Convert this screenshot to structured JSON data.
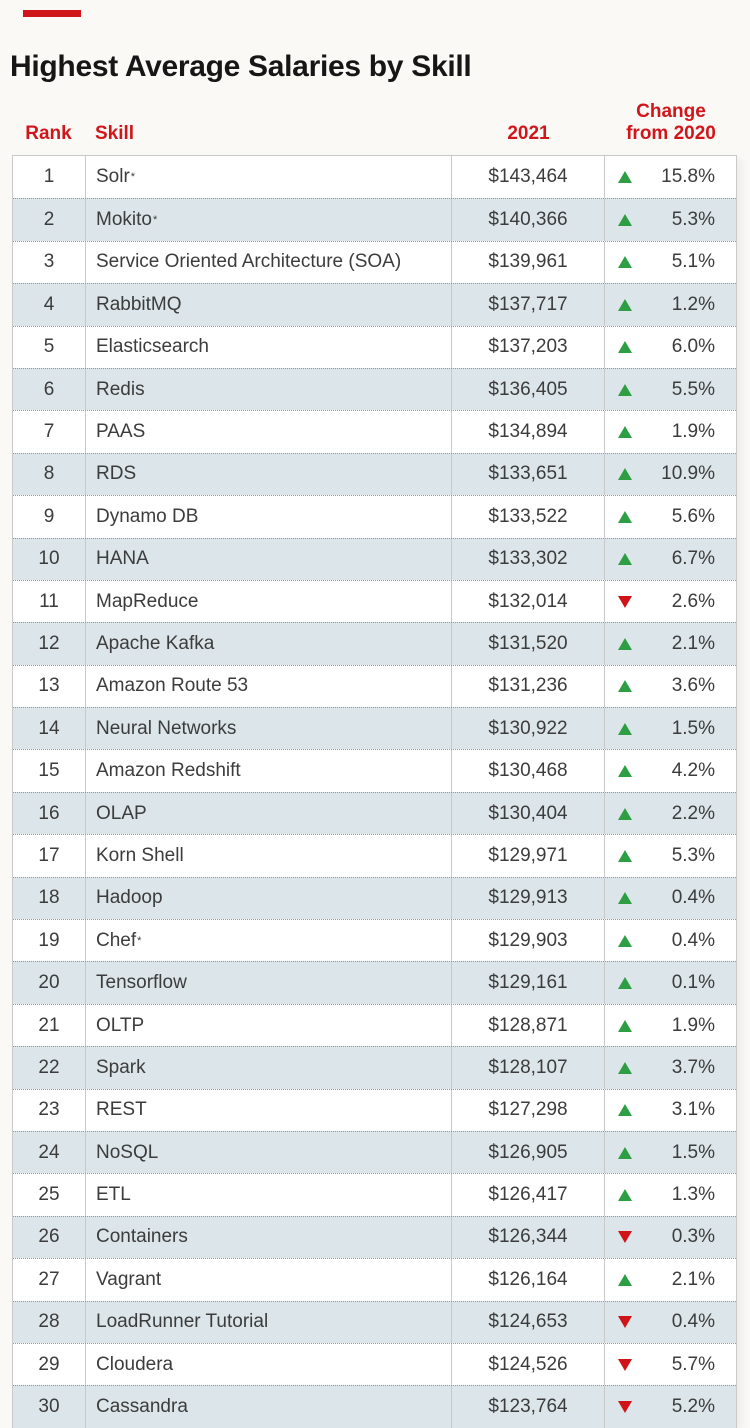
{
  "colors": {
    "accent": "#d0161b",
    "up": "#2e9e44",
    "down": "#cf1318",
    "alt_row": "#dce5e9"
  },
  "header": {
    "title": "Highest Average Salaries by Skill",
    "col_rank": "Rank",
    "col_skill": "Skill",
    "col_year": "2021",
    "col_change_line1": "Change",
    "col_change_line2": "from 2020"
  },
  "chart_data": {
    "type": "table",
    "title": "Highest Average Salaries by Skill",
    "columns": [
      "Rank",
      "Skill",
      "2021",
      "Change from 2020"
    ],
    "rows": [
      {
        "rank": "1",
        "skill": "Solr",
        "note": "*",
        "salary": "$143,464",
        "change": "15.8%",
        "direction": "up"
      },
      {
        "rank": "2",
        "skill": "Mokito",
        "note": "*",
        "salary": "$140,366",
        "change": "5.3%",
        "direction": "up"
      },
      {
        "rank": "3",
        "skill": "Service Oriented Architecture (SOA)",
        "note": "",
        "salary": "$139,961",
        "change": "5.1%",
        "direction": "up"
      },
      {
        "rank": "4",
        "skill": "RabbitMQ",
        "note": "",
        "salary": "$137,717",
        "change": "1.2%",
        "direction": "up"
      },
      {
        "rank": "5",
        "skill": "Elasticsearch",
        "note": "",
        "salary": "$137,203",
        "change": "6.0%",
        "direction": "up"
      },
      {
        "rank": "6",
        "skill": "Redis",
        "note": "",
        "salary": "$136,405",
        "change": "5.5%",
        "direction": "up"
      },
      {
        "rank": "7",
        "skill": "PAAS",
        "note": "",
        "salary": "$134,894",
        "change": "1.9%",
        "direction": "up"
      },
      {
        "rank": "8",
        "skill": "RDS",
        "note": "",
        "salary": "$133,651",
        "change": "10.9%",
        "direction": "up"
      },
      {
        "rank": "9",
        "skill": "Dynamo DB",
        "note": "",
        "salary": "$133,522",
        "change": "5.6%",
        "direction": "up"
      },
      {
        "rank": "10",
        "skill": "HANA",
        "note": "",
        "salary": "$133,302",
        "change": "6.7%",
        "direction": "up"
      },
      {
        "rank": "11",
        "skill": "MapReduce",
        "note": "",
        "salary": "$132,014",
        "change": "2.6%",
        "direction": "down"
      },
      {
        "rank": "12",
        "skill": "Apache Kafka",
        "note": "",
        "salary": "$131,520",
        "change": "2.1%",
        "direction": "up"
      },
      {
        "rank": "13",
        "skill": "Amazon Route 53",
        "note": "",
        "salary": "$131,236",
        "change": "3.6%",
        "direction": "up"
      },
      {
        "rank": "14",
        "skill": "Neural Networks",
        "note": "",
        "salary": "$130,922",
        "change": "1.5%",
        "direction": "up"
      },
      {
        "rank": "15",
        "skill": "Amazon Redshift",
        "note": "",
        "salary": "$130,468",
        "change": "4.2%",
        "direction": "up"
      },
      {
        "rank": "16",
        "skill": "OLAP",
        "note": "",
        "salary": "$130,404",
        "change": "2.2%",
        "direction": "up"
      },
      {
        "rank": "17",
        "skill": "Korn Shell",
        "note": "",
        "salary": "$129,971",
        "change": "5.3%",
        "direction": "up"
      },
      {
        "rank": "18",
        "skill": "Hadoop",
        "note": "",
        "salary": "$129,913",
        "change": "0.4%",
        "direction": "up"
      },
      {
        "rank": "19",
        "skill": "Chef",
        "note": "*",
        "salary": "$129,903",
        "change": "0.4%",
        "direction": "up"
      },
      {
        "rank": "20",
        "skill": "Tensorflow",
        "note": "",
        "salary": "$129,161",
        "change": "0.1%",
        "direction": "up"
      },
      {
        "rank": "21",
        "skill": "OLTP",
        "note": "",
        "salary": "$128,871",
        "change": "1.9%",
        "direction": "up"
      },
      {
        "rank": "22",
        "skill": "Spark",
        "note": "",
        "salary": "$128,107",
        "change": "3.7%",
        "direction": "up"
      },
      {
        "rank": "23",
        "skill": "REST",
        "note": "",
        "salary": "$127,298",
        "change": "3.1%",
        "direction": "up"
      },
      {
        "rank": "24",
        "skill": "NoSQL",
        "note": "",
        "salary": "$126,905",
        "change": "1.5%",
        "direction": "up"
      },
      {
        "rank": "25",
        "skill": "ETL",
        "note": "",
        "salary": "$126,417",
        "change": "1.3%",
        "direction": "up"
      },
      {
        "rank": "26",
        "skill": "Containers",
        "note": "",
        "salary": "$126,344",
        "change": "0.3%",
        "direction": "down"
      },
      {
        "rank": "27",
        "skill": "Vagrant",
        "note": "",
        "salary": "$126,164",
        "change": "2.1%",
        "direction": "up"
      },
      {
        "rank": "28",
        "skill": "LoadRunner Tutorial",
        "note": "",
        "salary": "$124,653",
        "change": "0.4%",
        "direction": "down"
      },
      {
        "rank": "29",
        "skill": "Cloudera",
        "note": "",
        "salary": "$124,526",
        "change": "5.7%",
        "direction": "down"
      },
      {
        "rank": "30",
        "skill": "Cassandra",
        "note": "",
        "salary": "$123,764",
        "change": "5.2%",
        "direction": "down"
      }
    ]
  }
}
